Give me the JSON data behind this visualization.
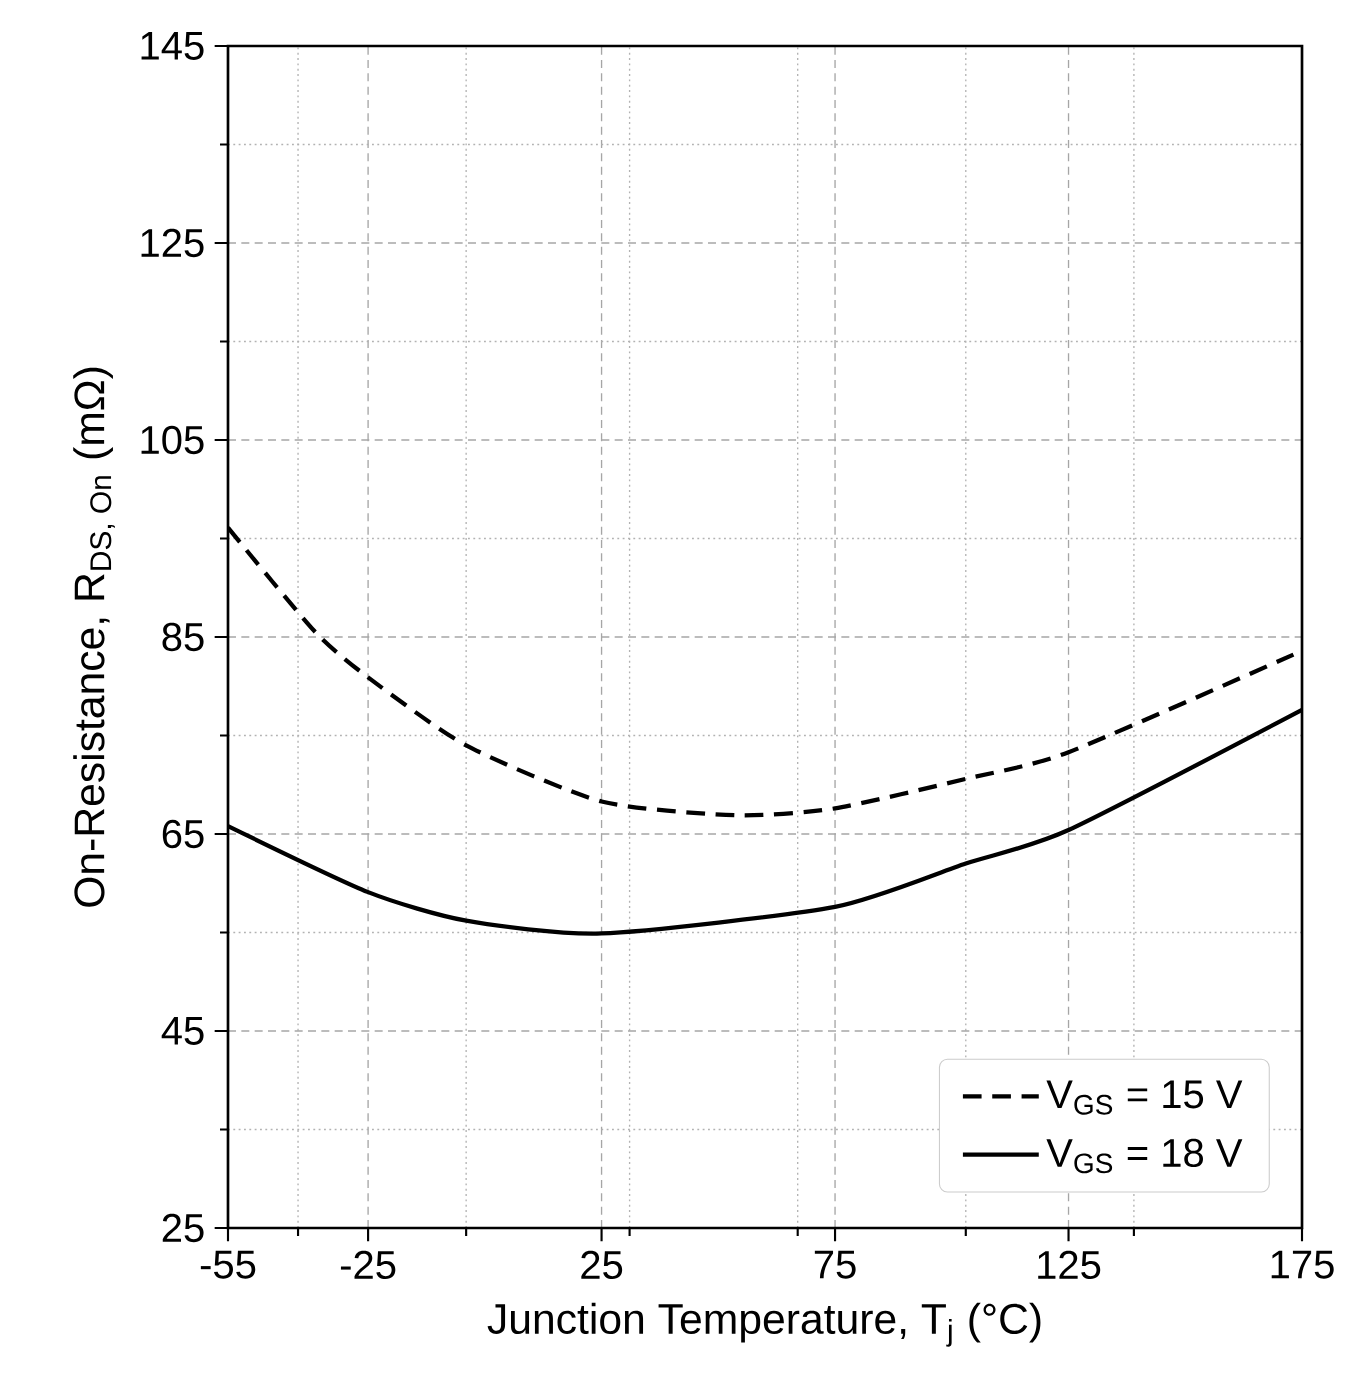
{
  "chart_data": {
    "type": "line",
    "xlabel": "Junction Temperature, T$_{j}$ (°C)",
    "ylabel": "\\text{On-Resistance, R}_{\\text{DS, On}}\\text{ (mΩ)}",
    "xlim": [
      -55,
      175
    ],
    "ylim": [
      25,
      145
    ],
    "xticks": [
      -55,
      {
        "value": -40,
        "label": null
      },
      -25,
      {
        "value": -4,
        "label": null
      },
      25,
      {
        "value": 31,
        "label": null
      },
      {
        "value": 67,
        "label": null
      },
      75,
      {
        "value": 103,
        "label": null
      },
      125,
      {
        "value": 139,
        "label": null
      },
      175
    ],
    "yticks": [
      25,
      {
        "value": 35,
        "label": null
      },
      45,
      {
        "value": 55,
        "label": null
      },
      65,
      {
        "value": 75,
        "label": null
      },
      85,
      {
        "value": 95,
        "label": null
      },
      105,
      {
        "value": 115,
        "label": null
      },
      125,
      {
        "value": 135,
        "label": null
      },
      145
    ],
    "grid": true,
    "legend": "bottom right",
    "marker": "none",
    "series": [
      {
        "name": "V$_{GS}$ = 15 V",
        "color": "#000000",
        "line_style": "dashed",
        "x": [
          -55,
          -36.5,
          -25,
          -4,
          25,
          54,
          75,
          103,
          125,
          175
        ],
        "values": [
          96.1,
          85.6,
          80.9,
          74.0,
          68.3,
          66.9,
          67.6,
          70.6,
          73.3,
          83.6
        ]
      },
      {
        "name": "V$_{GS}$ = 18 V",
        "color": "#000000",
        "line_style": "solid",
        "x": [
          -55,
          -25,
          -4,
          25,
          75,
          103,
          125,
          175
        ],
        "values": [
          65.8,
          59.1,
          56.2,
          54.9,
          57.6,
          62.0,
          65.4,
          77.6
        ]
      }
    ]
  }
}
